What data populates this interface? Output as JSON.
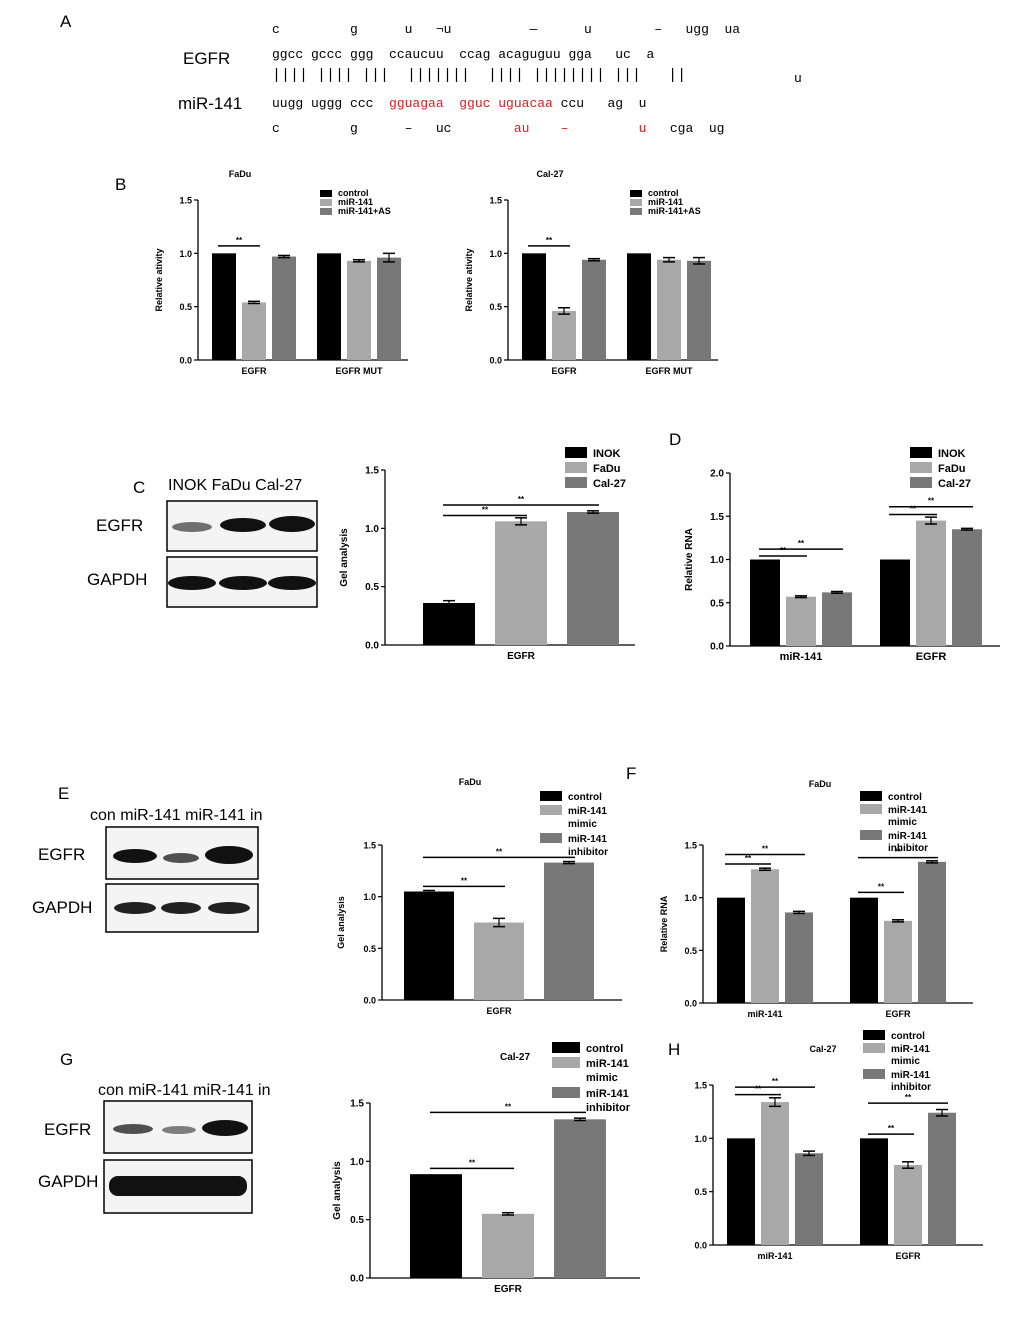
{
  "panel_labels": {
    "A": "A",
    "B": "B",
    "C": "C",
    "D": "D",
    "E": "E",
    "F": "F",
    "G": "G",
    "H": "H"
  },
  "panelA": {
    "label_egfr": "EGFR",
    "label_mir": "miR-141",
    "row1": [
      {
        "t": "c         g      u   ¬u          —      u        –   ugg  ua",
        "red": false
      }
    ],
    "row2": [
      {
        "t": "ggcc gccc ggg  ccaucuu  ccag acaguguu gga   uc  a",
        "red": false
      }
    ],
    "row3": [
      {
        "t": "|||| |||| |||  |||||||  |||| |||||||| |||   ||",
        "red": false
      }
    ],
    "row3b": "u",
    "row4": [
      {
        "t": "uugg uggg ccc  ",
        "red": false
      },
      {
        "t": "gguagaa  gguc uguacaa",
        "red": true
      },
      {
        "t": " ccu   ag  u",
        "red": false
      }
    ],
    "row5": [
      {
        "t": "c         g      –   uc        ",
        "red": false
      },
      {
        "t": "au    –         u",
        "red": true
      },
      {
        "t": "   cga  ug",
        "red": false
      }
    ]
  },
  "blotC": {
    "header": "INOK FaDu Cal-27",
    "rows": [
      "EGFR",
      "GAPDH"
    ]
  },
  "blotE": {
    "header": "con miR-141 miR-141 in",
    "rows": [
      "EGFR",
      "GAPDH"
    ]
  },
  "blotG": {
    "header": "con miR-141 miR-141 in",
    "rows": [
      "EGFR",
      "GAPDH"
    ]
  },
  "colors": {
    "black": "#000000",
    "light": "#a8a8a8",
    "dark": "#787878"
  },
  "chart_data": [
    {
      "id": "B1",
      "type": "bar",
      "title": "FaDu",
      "ylabel": "Relative ativity",
      "xlabel": "",
      "ylim": [
        0,
        1.5
      ],
      "yticks": [
        "0.0",
        "0.5",
        "1.0",
        "1.5"
      ],
      "categories": [
        "EGFR",
        "EGFR MUT"
      ],
      "series": [
        {
          "name": "control",
          "values": [
            1.0,
            1.0
          ],
          "err": [
            0,
            0
          ]
        },
        {
          "name": "miR-141",
          "values": [
            0.54,
            0.93
          ],
          "err": [
            0.01,
            0.01
          ]
        },
        {
          "name": "miR-141+AS",
          "values": [
            0.97,
            0.96
          ],
          "err": [
            0.01,
            0.04
          ]
        }
      ],
      "sig": [
        {
          "from": 0,
          "to": 1,
          "level": 1.07,
          "label": "**"
        }
      ],
      "legend": "top-right"
    },
    {
      "id": "B2",
      "type": "bar",
      "title": "Cal-27",
      "ylabel": "Relative ativity",
      "xlabel": "",
      "ylim": [
        0,
        1.5
      ],
      "yticks": [
        "0.0",
        "0.5",
        "1.0",
        "1.5"
      ],
      "categories": [
        "EGFR",
        "EGFR MUT"
      ],
      "series": [
        {
          "name": "control",
          "values": [
            1.0,
            1.0
          ],
          "err": [
            0,
            0
          ]
        },
        {
          "name": "miR-141",
          "values": [
            0.46,
            0.94
          ],
          "err": [
            0.03,
            0.02
          ]
        },
        {
          "name": "miR-141+AS",
          "values": [
            0.94,
            0.93
          ],
          "err": [
            0.01,
            0.03
          ]
        }
      ],
      "sig": [
        {
          "from": 0,
          "to": 1,
          "level": 1.07,
          "label": "**"
        }
      ],
      "legend": "top-right"
    },
    {
      "id": "C",
      "type": "bar",
      "title": "",
      "ylabel": "Gel analysis",
      "xlabel": "",
      "ylim": [
        0,
        1.5
      ],
      "yticks": [
        "0.0",
        "0.5",
        "1.0",
        "1.5"
      ],
      "categories": [
        "EGFR"
      ],
      "series": [
        {
          "name": "INOK",
          "values": [
            0.36
          ],
          "err": [
            0.02
          ]
        },
        {
          "name": "FaDu",
          "values": [
            1.06
          ],
          "err": [
            0.03
          ]
        },
        {
          "name": "Cal-27",
          "values": [
            1.14
          ],
          "err": [
            0.01
          ]
        }
      ],
      "sig": [
        {
          "from": 0,
          "to": 1,
          "level": 1.11,
          "label": "**"
        },
        {
          "from": 0,
          "to": 2,
          "level": 1.2,
          "label": "**"
        }
      ],
      "legend": "top-right"
    },
    {
      "id": "D",
      "type": "bar",
      "title": "",
      "ylabel": "Relative RNA",
      "xlabel": "",
      "ylim": [
        0,
        2.0
      ],
      "yticks": [
        "0.0",
        "0.5",
        "1.0",
        "1.5",
        "2.0"
      ],
      "categories": [
        "miR-141",
        "EGFR"
      ],
      "series": [
        {
          "name": "INOK",
          "values": [
            1.0,
            1.0
          ],
          "err": [
            0,
            0
          ]
        },
        {
          "name": "FaDu",
          "values": [
            0.57,
            1.45
          ],
          "err": [
            0.01,
            0.04
          ]
        },
        {
          "name": "Cal-27",
          "values": [
            0.62,
            1.35
          ],
          "err": [
            0.01,
            0.01
          ]
        }
      ],
      "sig": [
        {
          "cat": 0,
          "from": 0,
          "to": 1,
          "level": 1.04,
          "label": "**"
        },
        {
          "cat": 0,
          "from": 0,
          "to": 2,
          "level": 1.12,
          "label": "**"
        },
        {
          "cat": 1,
          "from": 0,
          "to": 1,
          "level": 1.52,
          "label": "**"
        },
        {
          "cat": 1,
          "from": 0,
          "to": 2,
          "level": 1.61,
          "label": "**"
        }
      ],
      "legend": "top-right"
    },
    {
      "id": "E",
      "type": "bar",
      "title": "FaDu",
      "ylabel": "Gel analysis",
      "xlabel": "",
      "ylim": [
        0,
        1.5
      ],
      "yticks": [
        "0.0",
        "0.5",
        "1.0",
        "1.5"
      ],
      "categories": [
        "EGFR"
      ],
      "series": [
        {
          "name": "control",
          "values": [
            1.05
          ],
          "err": [
            0.01
          ]
        },
        {
          "name": "miR-141 mimic",
          "values": [
            0.75
          ],
          "err": [
            0.04
          ]
        },
        {
          "name": "miR-141 inhibitor",
          "values": [
            1.33
          ],
          "err": [
            0.01
          ]
        }
      ],
      "sig": [
        {
          "from": 0,
          "to": 1,
          "level": 1.1,
          "label": "**"
        },
        {
          "from": 0,
          "to": 2,
          "level": 1.38,
          "label": "**"
        }
      ],
      "legend": "top-right"
    },
    {
      "id": "F",
      "type": "bar",
      "title": "FaDu",
      "ylabel": "Relative RNA",
      "xlabel": "",
      "ylim": [
        0,
        1.5
      ],
      "yticks": [
        "0.0",
        "0.5",
        "1.0",
        "1.5"
      ],
      "categories": [
        "miR-141",
        "EGFR"
      ],
      "series": [
        {
          "name": "control",
          "values": [
            1.0,
            1.0
          ],
          "err": [
            0,
            0
          ]
        },
        {
          "name": "miR-141 mimic",
          "values": [
            1.27,
            0.78
          ],
          "err": [
            0.01,
            0.01
          ]
        },
        {
          "name": "miR-141 inhibitor",
          "values": [
            0.86,
            1.34
          ],
          "err": [
            0.01,
            0.01
          ]
        }
      ],
      "sig": [
        {
          "cat": 0,
          "from": 0,
          "to": 1,
          "level": 1.32,
          "label": "**"
        },
        {
          "cat": 0,
          "from": 0,
          "to": 2,
          "level": 1.41,
          "label": "**"
        },
        {
          "cat": 1,
          "from": 0,
          "to": 1,
          "level": 1.05,
          "label": "**"
        },
        {
          "cat": 1,
          "from": 0,
          "to": 2,
          "level": 1.38,
          "label": "**"
        }
      ],
      "legend": "top-right"
    },
    {
      "id": "G",
      "type": "bar",
      "title": "Cal-27",
      "ylabel": "Gel analysis",
      "xlabel": "",
      "ylim": [
        0,
        1.5
      ],
      "yticks": [
        "0.0",
        "0.5",
        "1.0",
        "1.5"
      ],
      "categories": [
        "EGFR"
      ],
      "series": [
        {
          "name": "control",
          "values": [
            0.89
          ],
          "err": [
            0.0
          ]
        },
        {
          "name": "miR-141 mimic",
          "values": [
            0.55
          ],
          "err": [
            0.01
          ]
        },
        {
          "name": "miR-141 inhibitor",
          "values": [
            1.36
          ],
          "err": [
            0.01
          ]
        }
      ],
      "sig": [
        {
          "from": 0,
          "to": 1,
          "level": 0.94,
          "label": "**"
        },
        {
          "from": 0,
          "to": 2,
          "level": 1.42,
          "label": "**"
        }
      ],
      "legend": "top-right"
    },
    {
      "id": "H",
      "type": "bar",
      "title": "Cal-27",
      "ylabel": "",
      "xlabel": "",
      "ylim": [
        0,
        1.5
      ],
      "yticks": [
        "0.0",
        "0.5",
        "1.0",
        "1.5"
      ],
      "categories": [
        "miR-141",
        "EGFR"
      ],
      "series": [
        {
          "name": "control",
          "values": [
            1.0,
            1.0
          ],
          "err": [
            0,
            0
          ]
        },
        {
          "name": "miR-141 mimic",
          "values": [
            1.34,
            0.75
          ],
          "err": [
            0.04,
            0.03
          ]
        },
        {
          "name": "miR-141 inhibitor",
          "values": [
            0.86,
            1.24
          ],
          "err": [
            0.02,
            0.03
          ]
        }
      ],
      "sig": [
        {
          "cat": 0,
          "from": 0,
          "to": 1,
          "level": 1.41,
          "label": "**"
        },
        {
          "cat": 0,
          "from": 0,
          "to": 2,
          "level": 1.48,
          "label": "**"
        },
        {
          "cat": 1,
          "from": 0,
          "to": 1,
          "level": 1.04,
          "label": "**"
        },
        {
          "cat": 1,
          "from": 0,
          "to": 2,
          "level": 1.33,
          "label": "**"
        }
      ],
      "legend": "top-right"
    }
  ]
}
